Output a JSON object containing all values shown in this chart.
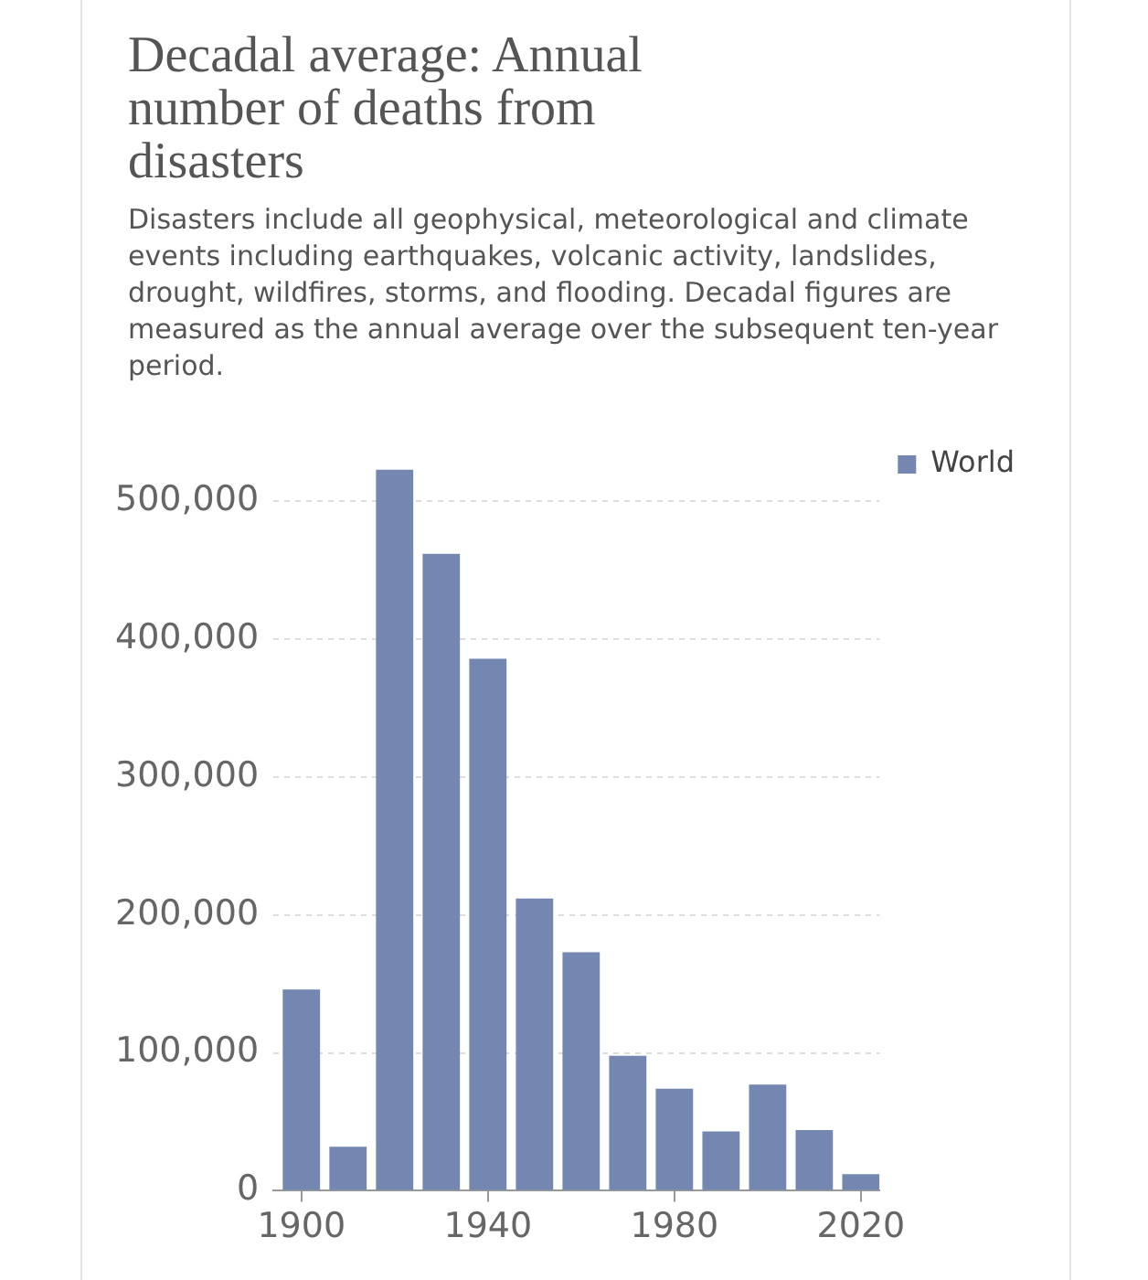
{
  "chart_data": {
    "type": "bar",
    "title": "Decadal average: Annual number of deaths from disasters",
    "subtitle": "Disasters include all geophysical, meteorological and climate events including earthquakes, volcanic activity, landslides, drought, wildfires, storms, and flooding. Decadal figures are measured as the annual average over the subsequent ten-year period.",
    "x": [
      1900,
      1910,
      1920,
      1930,
      1940,
      1950,
      1960,
      1970,
      1980,
      1990,
      2000,
      2010,
      2020
    ],
    "series": [
      {
        "name": "World",
        "color": "#7487b0",
        "values": [
          146000,
          32000,
          523000,
          462000,
          386000,
          212000,
          173000,
          98000,
          74000,
          43000,
          77000,
          44000,
          12000
        ]
      }
    ],
    "xlim": [
      1894,
      2024
    ],
    "xticks": [
      1900,
      1940,
      1980,
      2020
    ],
    "ylim": [
      0,
      525000
    ],
    "yticks": [
      0,
      {
        "value": 100000,
        "label": "100,000"
      },
      {
        "value": 200000,
        "label": "200,000"
      },
      {
        "value": 300000,
        "label": "300,000"
      },
      {
        "value": 400000,
        "label": "400,000"
      },
      {
        "value": 500000,
        "label": "500,000"
      }
    ],
    "grid": "y",
    "legend": "right"
  }
}
